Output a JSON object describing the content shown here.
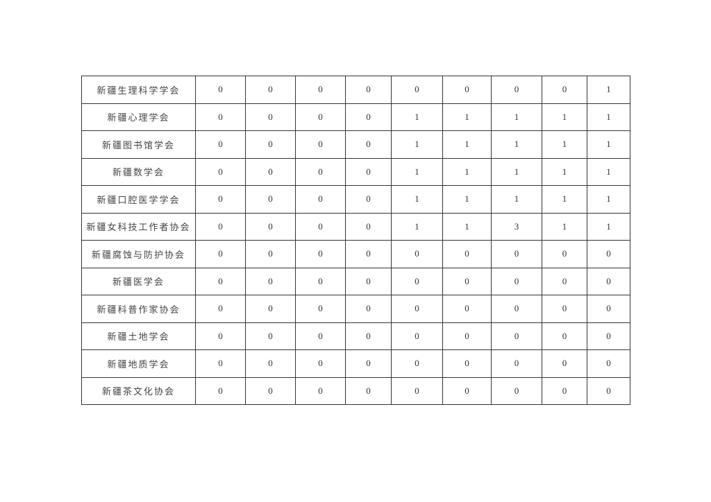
{
  "table": {
    "rows": [
      {
        "name": "新疆生理科学学会",
        "values": [
          "0",
          "0",
          "0",
          "0",
          "0",
          "0",
          "0",
          "0",
          "1"
        ]
      },
      {
        "name": "新疆心理学会",
        "values": [
          "0",
          "0",
          "0",
          "0",
          "1",
          "1",
          "1",
          "1",
          "1"
        ]
      },
      {
        "name": "新疆图书馆学会",
        "values": [
          "0",
          "0",
          "0",
          "0",
          "1",
          "1",
          "1",
          "1",
          "1"
        ]
      },
      {
        "name": "新疆数学会",
        "values": [
          "0",
          "0",
          "0",
          "0",
          "1",
          "1",
          "1",
          "1",
          "1"
        ]
      },
      {
        "name": "新疆口腔医学学会",
        "values": [
          "0",
          "0",
          "0",
          "0",
          "1",
          "1",
          "1",
          "1",
          "1"
        ]
      },
      {
        "name": "新疆女科技工作者协会",
        "values": [
          "0",
          "0",
          "0",
          "0",
          "1",
          "1",
          "3",
          "1",
          "1"
        ]
      },
      {
        "name": "新疆腐蚀与防护协会",
        "values": [
          "0",
          "0",
          "0",
          "0",
          "0",
          "0",
          "0",
          "0",
          "0"
        ]
      },
      {
        "name": "新疆医学会",
        "values": [
          "0",
          "0",
          "0",
          "0",
          "0",
          "0",
          "0",
          "0",
          "0"
        ]
      },
      {
        "name": "新疆科普作家协会",
        "values": [
          "0",
          "0",
          "0",
          "0",
          "0",
          "0",
          "0",
          "0",
          "0"
        ]
      },
      {
        "name": "新疆土地学会",
        "values": [
          "0",
          "0",
          "0",
          "0",
          "0",
          "0",
          "0",
          "0",
          "0"
        ]
      },
      {
        "name": "新疆地质学会",
        "values": [
          "0",
          "0",
          "0",
          "0",
          "0",
          "0",
          "0",
          "0",
          "0"
        ]
      },
      {
        "name": "新疆茶文化协会",
        "values": [
          "0",
          "0",
          "0",
          "0",
          "0",
          "0",
          "0",
          "0",
          "0"
        ]
      }
    ]
  }
}
